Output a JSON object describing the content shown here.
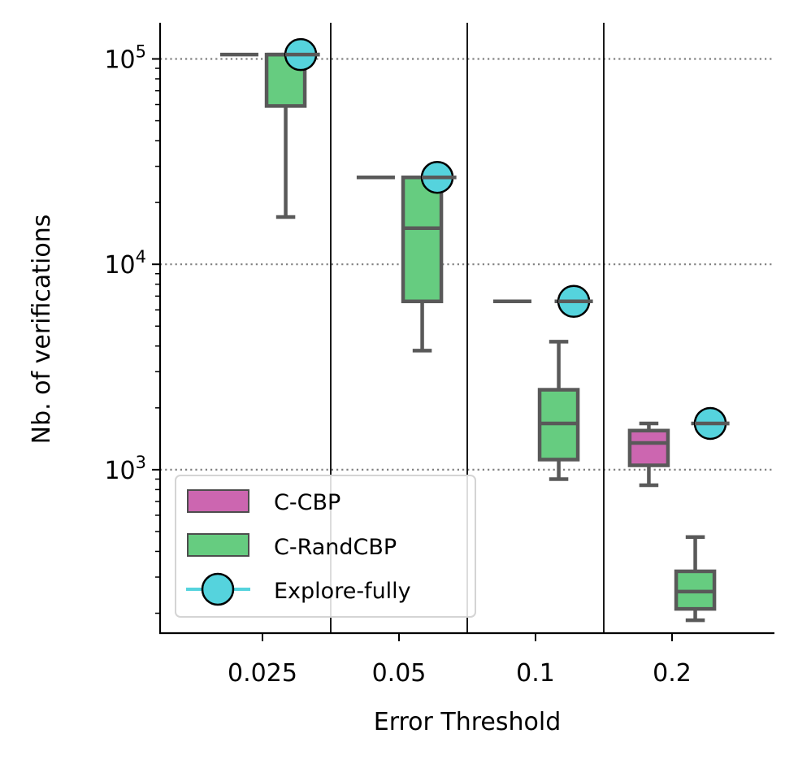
{
  "chart_data": {
    "type": "box",
    "xlabel": "Error Threshold",
    "ylabel": "Nb. of verifications",
    "yscale": "log",
    "ylim": [
      160,
      150000
    ],
    "categories": [
      "0.025",
      "0.05",
      "0.1",
      "0.2"
    ],
    "y_major_ticks": [
      {
        "value": 1000,
        "base": "10",
        "exp": "3"
      },
      {
        "value": 10000,
        "base": "10",
        "exp": "4"
      },
      {
        "value": 100000,
        "base": "10",
        "exp": "5"
      }
    ],
    "grid": "horizontal dotted at major ticks",
    "series": [
      {
        "name": "C-CBP",
        "color": "#cc66b0",
        "boxes": [
          {
            "category": "0.025",
            "min": 105000,
            "q1": 105000,
            "median": 105000,
            "q3": 105000,
            "max": 105000
          },
          {
            "category": "0.05",
            "min": 26500,
            "q1": 26500,
            "median": 26500,
            "q3": 26500,
            "max": 26500
          },
          {
            "category": "0.1",
            "min": 6600,
            "q1": 6600,
            "median": 6600,
            "q3": 6600,
            "max": 6600
          },
          {
            "category": "0.2",
            "min": 840,
            "q1": 1050,
            "median": 1350,
            "q3": 1550,
            "max": 1680
          }
        ]
      },
      {
        "name": "C-RandCBP",
        "color": "#66cc80",
        "boxes": [
          {
            "category": "0.025",
            "min": 17000,
            "q1": 59000,
            "median": 105000,
            "q3": 105000,
            "max": 105000
          },
          {
            "category": "0.05",
            "min": 3800,
            "q1": 6600,
            "median": 15000,
            "q3": 26500,
            "max": 26500
          },
          {
            "category": "0.1",
            "min": 900,
            "q1": 1120,
            "median": 1680,
            "q3": 2450,
            "max": 4200
          },
          {
            "category": "0.2",
            "min": 185,
            "q1": 210,
            "median": 255,
            "q3": 320,
            "max": 470
          }
        ]
      },
      {
        "name": "Explore-fully",
        "color": "#55d3dd",
        "points": [
          {
            "category": "0.025",
            "value": 105000
          },
          {
            "category": "0.05",
            "value": 26500
          },
          {
            "category": "0.1",
            "value": 6600
          },
          {
            "category": "0.2",
            "value": 1680
          }
        ]
      }
    ],
    "legend": {
      "position": "lower-left",
      "entries": [
        "C-CBP",
        "C-RandCBP",
        "Explore-fully"
      ]
    }
  }
}
